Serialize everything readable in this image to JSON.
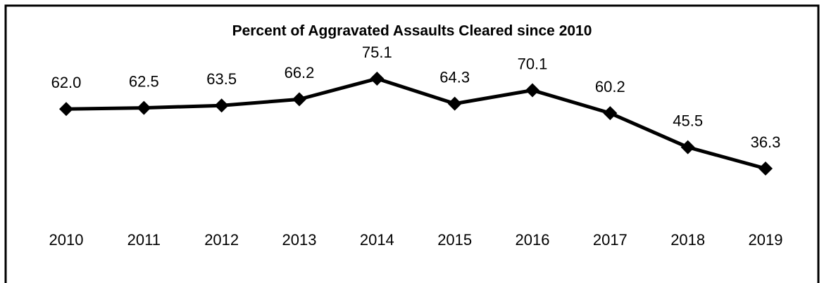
{
  "chart_data": {
    "type": "line",
    "title": "Percent of Aggravated Assaults Cleared since 2010",
    "categories": [
      "2010",
      "2011",
      "2012",
      "2013",
      "2014",
      "2015",
      "2016",
      "2017",
      "2018",
      "2019"
    ],
    "values": [
      62.0,
      62.5,
      63.5,
      66.2,
      75.1,
      64.3,
      70.1,
      60.2,
      45.5,
      36.3
    ],
    "value_labels": [
      "62.0",
      "62.5",
      "63.5",
      "66.2",
      "75.1",
      "64.3",
      "70.1",
      "60.2",
      "45.5",
      "36.3"
    ],
    "color": "#000000"
  }
}
